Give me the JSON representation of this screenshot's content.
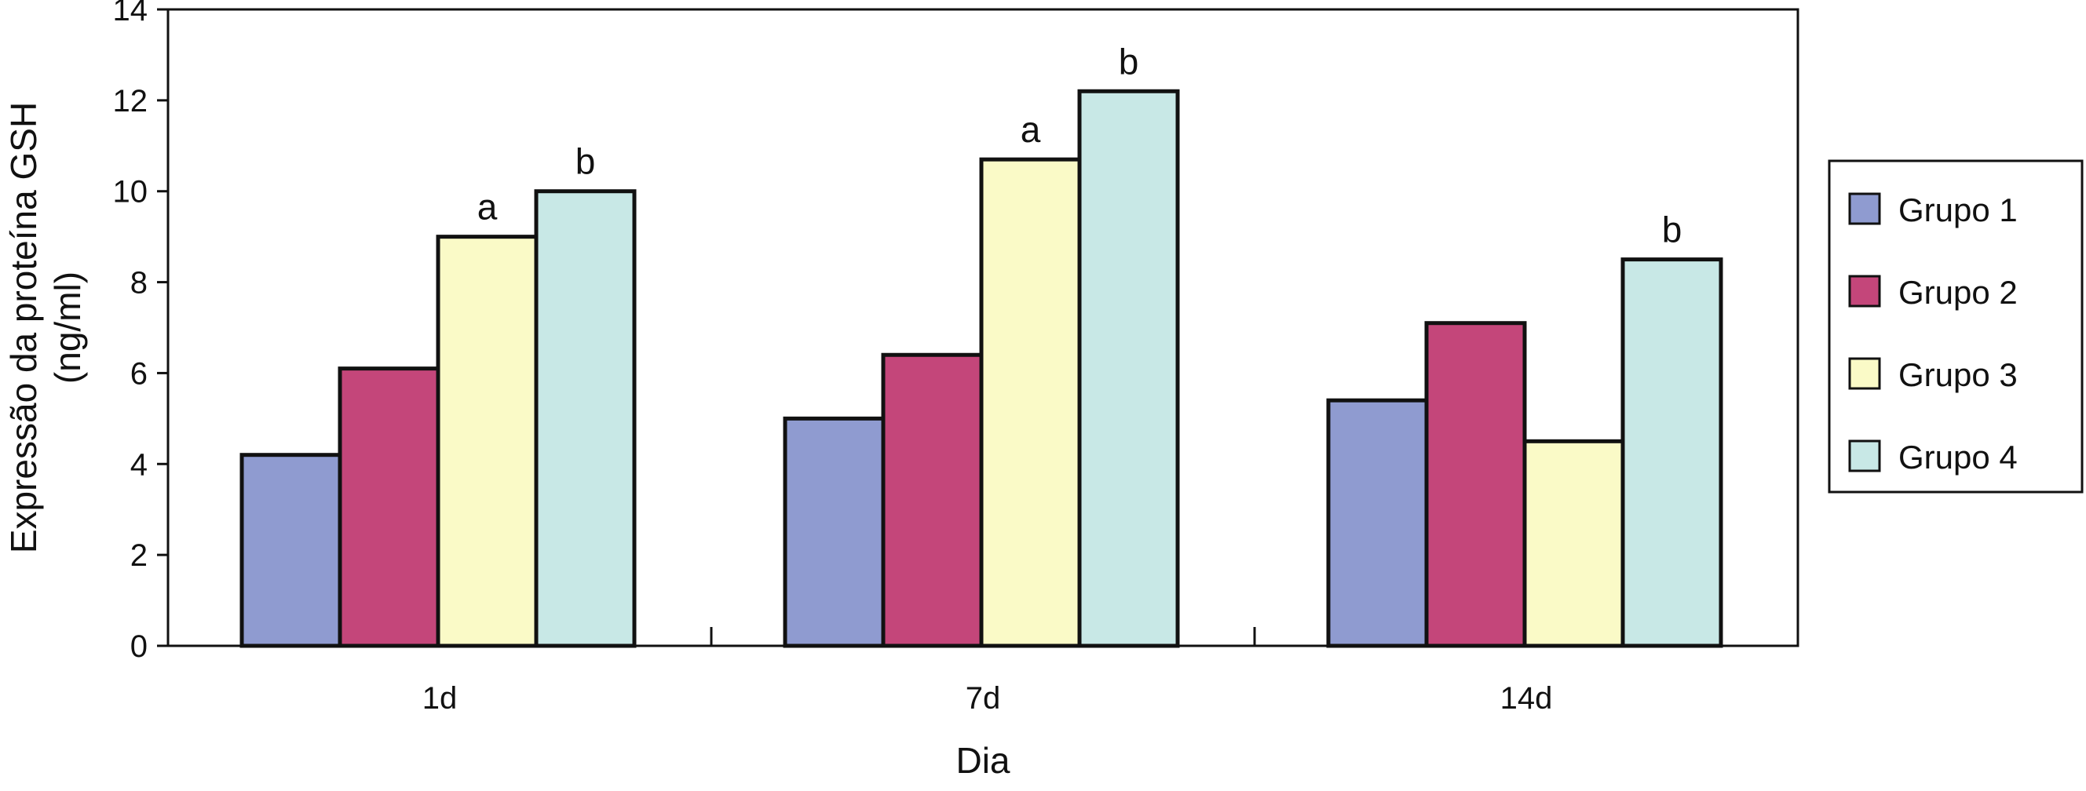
{
  "chart_data": {
    "type": "bar",
    "title": "",
    "xlabel": "Dia",
    "ylabel_lines": [
      "Expressão da proteína GSH",
      "(ng/ml)"
    ],
    "categories": [
      "1d",
      "7d",
      "14d"
    ],
    "ylim": [
      0,
      14
    ],
    "yticks": [
      "0",
      "2",
      "4",
      "6",
      "8",
      "10",
      "12",
      "14"
    ],
    "grid": false,
    "legend_position": "right",
    "series": [
      {
        "name": "Grupo 1",
        "color": "#8f9bd0",
        "values": [
          4.2,
          5.0,
          5.4
        ],
        "annotations": [
          "",
          "",
          ""
        ]
      },
      {
        "name": "Grupo 2",
        "color": "#c4467a",
        "values": [
          6.1,
          6.4,
          7.1
        ],
        "annotations": [
          "",
          "",
          ""
        ]
      },
      {
        "name": "Grupo 3",
        "color": "#fafac7",
        "values": [
          9.0,
          10.7,
          4.5
        ],
        "annotations": [
          "a",
          "a",
          ""
        ]
      },
      {
        "name": "Grupo 4",
        "color": "#c8e8e6",
        "values": [
          10.0,
          12.2,
          8.5
        ],
        "annotations": [
          "b",
          "b",
          "b"
        ]
      }
    ]
  }
}
